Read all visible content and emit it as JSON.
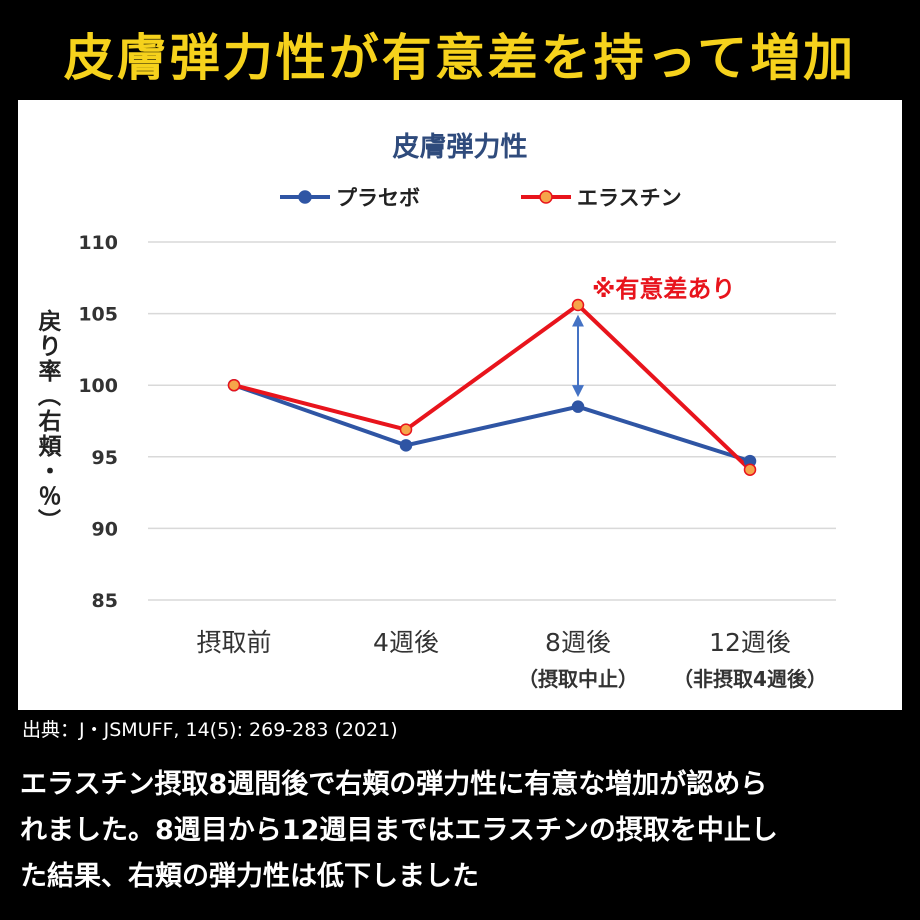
{
  "headline": "皮膚弾力性が有意差を持って増加",
  "source": "出典：J・JSMUFF, 14(5): 269-283 (2021)",
  "caption_lines": [
    "エラスチン摂取8週間後で右頬の弾力性に有意な増加が認めら",
    "れました。8週目から12週目まではエラスチンの摂取を中止し",
    "た結果、右頬の弾力性は低下しました"
  ],
  "chart_data": {
    "type": "line",
    "title": "皮膚弾力性",
    "ylabel": "戻り率（右頬・％）",
    "categories": [
      [
        "摂取前"
      ],
      [
        "4週後"
      ],
      [
        "8週後",
        "（摂取中止）"
      ],
      [
        "12週後",
        "（非摂取4週後）"
      ]
    ],
    "ylim": [
      85,
      110
    ],
    "yticks": [
      85,
      90,
      95,
      100,
      105,
      110
    ],
    "grid": true,
    "legend_position": "top",
    "series": [
      {
        "name": "プラセボ",
        "color": "#2f55a4",
        "marker_color": "#2f55a4",
        "values": [
          100,
          95.8,
          98.5,
          94.7
        ]
      },
      {
        "name": "エラスチン",
        "color": "#e8141c",
        "marker_color": "#f5a54a",
        "values": [
          100,
          96.9,
          105.6,
          94.1
        ]
      }
    ],
    "annotation": {
      "text": "※有意差あり",
      "color": "#e8141c",
      "category_index": 2,
      "from_value": 98.5,
      "to_value": 105.6,
      "arrow_color": "#4472c4"
    }
  }
}
